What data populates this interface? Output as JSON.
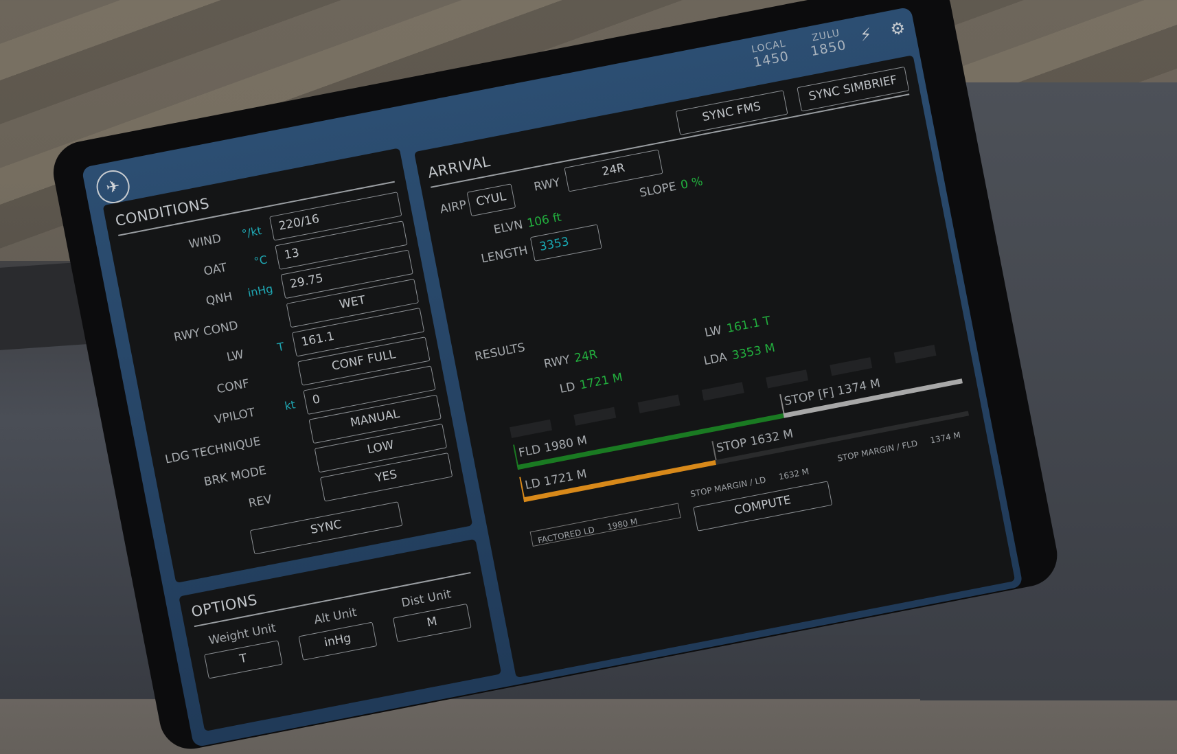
{
  "header": {
    "local_label": "LOCAL",
    "local_time": "1450",
    "zulu_label": "ZULU",
    "zulu_time": "1850",
    "icons": [
      "airplane-icon",
      "plug-icon",
      "gear-icon"
    ]
  },
  "conditions": {
    "title": "CONDITIONS",
    "fields": [
      {
        "label": "WIND",
        "unit": "°/kt",
        "value": "220/16"
      },
      {
        "label": "OAT",
        "unit": "°C",
        "value": "13"
      },
      {
        "label": "QNH",
        "unit": "inHg",
        "value": "29.75"
      },
      {
        "label": "RWY COND",
        "unit": "",
        "value": "WET"
      },
      {
        "label": "LW",
        "unit": "T",
        "value": "161.1"
      },
      {
        "label": "CONF",
        "unit": "",
        "value": "CONF FULL"
      },
      {
        "label": "VPILOT",
        "unit": "kt",
        "value": "0"
      },
      {
        "label": "LDG TECHNIQUE",
        "unit": "",
        "value": "MANUAL"
      },
      {
        "label": "BRK MODE",
        "unit": "",
        "value": "LOW"
      },
      {
        "label": "REV",
        "unit": "",
        "value": "YES"
      }
    ],
    "sync_label": "SYNC"
  },
  "options": {
    "title": "OPTIONS",
    "weight_label": "Weight Unit",
    "weight_value": "T",
    "alt_label": "Alt Unit",
    "alt_value": "inHg",
    "dist_label": "Dist Unit",
    "dist_value": "M"
  },
  "arrival": {
    "title": "ARRIVAL",
    "sync_fms": "SYNC FMS",
    "sync_simbrief": "SYNC SIMBRIEF",
    "airp_label": "AIRP",
    "airp": "CYUL",
    "rwy_label": "RWY",
    "rwy": "24R",
    "slope_label": "SLOPE",
    "slope": "0 %",
    "elvn_label": "ELVN",
    "elvn": "106 ft",
    "length_label": "LENGTH",
    "length": "3353"
  },
  "results": {
    "title": "RESULTS",
    "rwy_label": "RWY",
    "rwy": "24R",
    "ld_label": "LD",
    "ld": "1721 M",
    "lw_label": "LW",
    "lw": "161.1 T",
    "lda_label": "LDA",
    "lda": "3353 M",
    "fld_bar": "FLD 1980 M",
    "ld_bar": "LD 1721 M",
    "stop_f": "STOP [F] 1374 M",
    "stop": "STOP 1632 M",
    "factored_ld_label": "FACTORED LD",
    "factored_ld": "1980 M",
    "stop_margin_ld_label": "STOP MARGIN / LD",
    "stop_margin_ld": "1632 M",
    "stop_margin_fld_label": "STOP MARGIN / FLD",
    "stop_margin_fld": "1374 M",
    "compute_label": "COMPUTE",
    "colors": {
      "fld": "#1a7a22",
      "ld": "#d8891a",
      "stop_f": "#a8a8a8"
    }
  }
}
